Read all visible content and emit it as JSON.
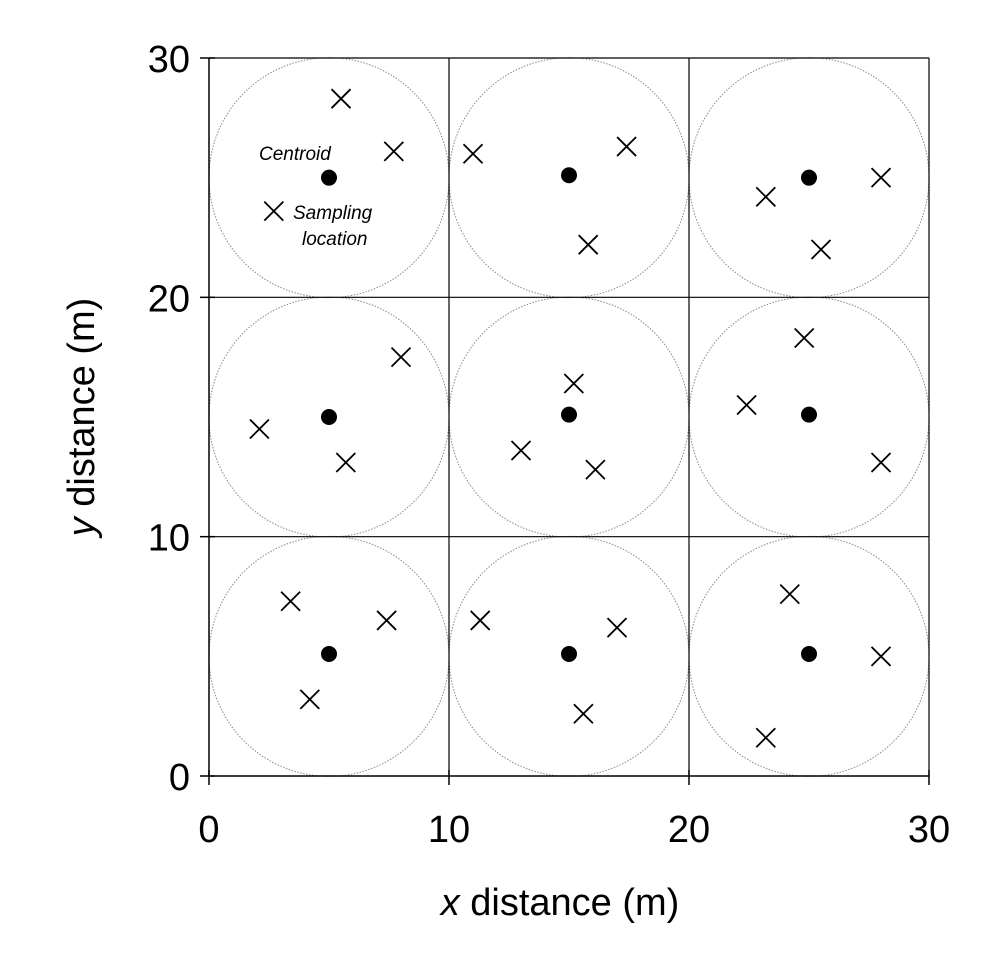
{
  "chart_data": {
    "type": "scatter",
    "xlabel": {
      "var": "x",
      "rest": " distance (m)"
    },
    "ylabel": {
      "var": "y",
      "rest": " distance (m)"
    },
    "xlim": [
      0,
      30
    ],
    "ylim": [
      0,
      30
    ],
    "xticks": [
      "0",
      "10",
      "20",
      "30"
    ],
    "yticks": [
      "0",
      "10",
      "20",
      "30"
    ],
    "grid": {
      "cells": 3,
      "cell_size": 10
    },
    "circle_radius": 5,
    "annotations": {
      "centroid": "Centroid",
      "sampling": [
        "Sampling",
        "location"
      ]
    },
    "centroids": [
      {
        "x": 5,
        "y": 25
      },
      {
        "x": 15,
        "y": 25.1
      },
      {
        "x": 25,
        "y": 25
      },
      {
        "x": 5,
        "y": 15
      },
      {
        "x": 15,
        "y": 15.1
      },
      {
        "x": 25,
        "y": 15.1
      },
      {
        "x": 5,
        "y": 5.1
      },
      {
        "x": 15,
        "y": 5.1
      },
      {
        "x": 25,
        "y": 5.1
      }
    ],
    "sampling_locations": [
      {
        "x": 5.5,
        "y": 28.3
      },
      {
        "x": 7.7,
        "y": 26.1
      },
      {
        "x": 2.7,
        "y": 23.6
      },
      {
        "x": 11.0,
        "y": 26.0
      },
      {
        "x": 17.4,
        "y": 26.3
      },
      {
        "x": 15.8,
        "y": 22.2
      },
      {
        "x": 23.2,
        "y": 24.2
      },
      {
        "x": 28.0,
        "y": 25.0
      },
      {
        "x": 25.5,
        "y": 22.0
      },
      {
        "x": 8.0,
        "y": 17.5
      },
      {
        "x": 2.1,
        "y": 14.5
      },
      {
        "x": 5.7,
        "y": 13.1
      },
      {
        "x": 15.2,
        "y": 16.4
      },
      {
        "x": 13.0,
        "y": 13.6
      },
      {
        "x": 16.1,
        "y": 12.8
      },
      {
        "x": 24.8,
        "y": 18.3
      },
      {
        "x": 22.4,
        "y": 15.5
      },
      {
        "x": 28.0,
        "y": 13.1
      },
      {
        "x": 3.4,
        "y": 7.3
      },
      {
        "x": 7.4,
        "y": 6.5
      },
      {
        "x": 4.2,
        "y": 3.2
      },
      {
        "x": 11.3,
        "y": 6.5
      },
      {
        "x": 17.0,
        "y": 6.2
      },
      {
        "x": 15.6,
        "y": 2.6
      },
      {
        "x": 24.2,
        "y": 7.6
      },
      {
        "x": 28.0,
        "y": 5.0
      },
      {
        "x": 23.2,
        "y": 1.6
      }
    ]
  }
}
